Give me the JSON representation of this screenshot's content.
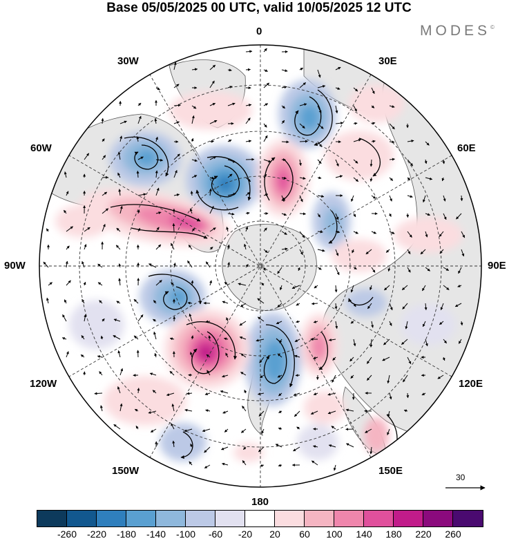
{
  "title": "Base 05/05/2025 00 UTC, valid 10/05/2025 12 UTC",
  "brand": "MODES",
  "brand_mark": "©",
  "longitude_labels": {
    "lon_0": "0",
    "lon_30e": "30E",
    "lon_60e": "60E",
    "lon_90e": "90E",
    "lon_120e": "120E",
    "lon_150e": "150E",
    "lon_180": "180",
    "lon_150w": "150W",
    "lon_120w": "120W",
    "lon_90w": "90W",
    "lon_60w": "60W",
    "lon_30w": "30W"
  },
  "reference_vector": "30",
  "colorbar": {
    "colors": [
      "#0d3a5c",
      "#12588f",
      "#2f7fbd",
      "#5aa0d1",
      "#8fb8dc",
      "#bcc9e6",
      "#e2e1f0",
      "#ffffff",
      "#fbdde0",
      "#f5b5c2",
      "#ef86ac",
      "#e0509c",
      "#c11c8a",
      "#8b0a7d",
      "#4a0a70"
    ],
    "ticks": [
      "-260",
      "-220",
      "-180",
      "-140",
      "-100",
      "-60",
      "-20",
      "20",
      "60",
      "100",
      "140",
      "180",
      "220",
      "260"
    ]
  }
}
